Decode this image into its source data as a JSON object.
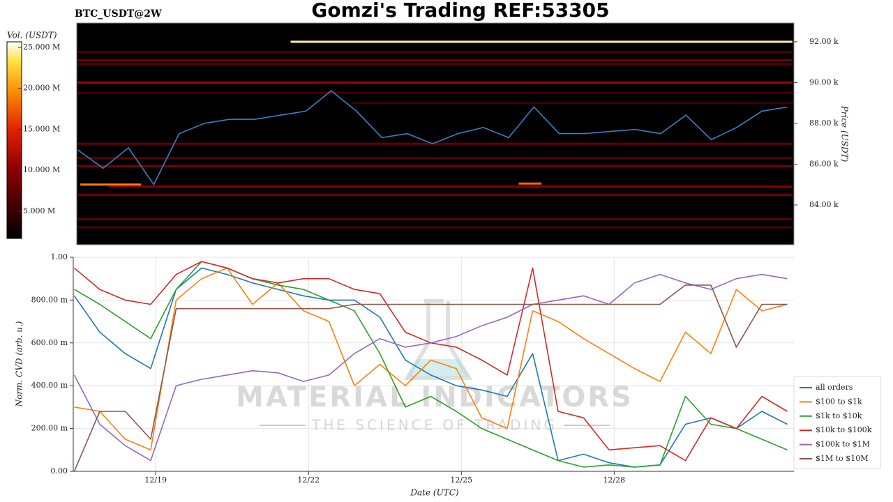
{
  "title": "Gomzi's Trading REF:53305",
  "watermark": {
    "title": "MATERIAL INDICATORS",
    "subtitle": "THE SCIENCE OF TRADING"
  },
  "chart_data": [
    {
      "type": "heatmap",
      "title": "BTC_USDT@2W",
      "y_label": "Price (USDT)",
      "xlim": [
        17.38,
        31.53
      ],
      "ylim": [
        82050,
        92920
      ],
      "yticks": [
        {
          "value": 84000,
          "label": "84.00 k"
        },
        {
          "value": 86000,
          "label": "86.00 k"
        },
        {
          "value": 88000,
          "label": "88.00 k"
        },
        {
          "value": 90000,
          "label": "90.00 k"
        },
        {
          "value": 92000,
          "label": "92.00 k"
        }
      ],
      "colorbar": {
        "label": "Vol. (USDT)",
        "lim": [
          1670000,
          25680000
        ],
        "ticks": [
          {
            "value": 5000000,
            "label": "5.000 M"
          },
          {
            "value": 10000000,
            "label": "10.000 M"
          },
          {
            "value": 15000000,
            "label": "15.000 M"
          },
          {
            "value": 20000000,
            "label": "20.000 M"
          },
          {
            "value": 25000000,
            "label": "25.000 M"
          }
        ]
      },
      "bands": {
        "prices": [
          92000,
          91100,
          90900,
          90000,
          89500,
          87000,
          86300,
          85900,
          85000,
          85050,
          84900,
          84500,
          83300,
          82900,
          91500,
          89000
        ],
        "volumes": [
          24500000,
          9000000,
          7000000,
          11000000,
          6000000,
          8000000,
          7000000,
          9000000,
          19000000,
          18000000,
          10000000,
          8500000,
          7500000,
          6500000,
          6000000,
          5500000
        ],
        "starts": [
          21.6,
          17.4,
          17.4,
          17.4,
          17.4,
          17.4,
          17.4,
          17.4,
          17.45,
          26.1,
          18.0,
          17.4,
          17.4,
          17.4,
          17.4,
          22.8
        ],
        "ends": [
          31.5,
          31.5,
          31.5,
          31.5,
          31.5,
          31.5,
          31.5,
          31.5,
          18.65,
          26.55,
          31.5,
          31.5,
          31.5,
          31.5,
          31.5,
          31.5
        ]
      },
      "price": {
        "color": "#3a80c4",
        "x": [
          17.4,
          17.9,
          18.4,
          18.9,
          19.4,
          19.9,
          20.4,
          20.9,
          21.4,
          21.9,
          22.4,
          22.9,
          23.4,
          23.9,
          24.4,
          24.9,
          25.4,
          25.9,
          26.4,
          26.9,
          27.4,
          27.9,
          28.4,
          28.9,
          29.4,
          29.9,
          30.4,
          30.9,
          31.4
        ],
        "values": [
          86700,
          85800,
          86800,
          85000,
          87500,
          88000,
          88200,
          88200,
          88400,
          88600,
          89600,
          88600,
          87300,
          87500,
          87000,
          87500,
          87800,
          87300,
          88800,
          87500,
          87500,
          87600,
          87700,
          87500,
          88400,
          87200,
          87800,
          88600,
          88800
        ]
      }
    },
    {
      "type": "line",
      "y_label": "Norm. CVD (arb. u.)",
      "x_label": "Date (UTC)",
      "xlim": [
        17.38,
        31.53
      ],
      "xticks": [
        {
          "value": 19,
          "label": "12/19"
        },
        {
          "value": 22,
          "label": "12/22"
        },
        {
          "value": 25,
          "label": "12/25"
        },
        {
          "value": 28,
          "label": "12/28"
        }
      ],
      "ylim": [
        0,
        1
      ],
      "yticks": [
        {
          "value": 0,
          "label": "0.00"
        },
        {
          "value": 0.2,
          "label": "200.00 m"
        },
        {
          "value": 0.4,
          "label": "400.00 m"
        },
        {
          "value": 0.6,
          "label": "600.00 m"
        },
        {
          "value": 0.8,
          "label": "800.00 m"
        },
        {
          "value": 1,
          "label": "1.00"
        }
      ],
      "grid": true,
      "x": [
        17.4,
        17.9,
        18.4,
        18.9,
        19.4,
        19.9,
        20.4,
        20.9,
        21.4,
        21.9,
        22.4,
        22.9,
        23.4,
        23.9,
        24.4,
        24.9,
        25.4,
        25.9,
        26.4,
        26.9,
        27.4,
        27.9,
        28.4,
        28.9,
        29.4,
        29.9,
        30.4,
        30.9,
        31.4
      ],
      "series": [
        {
          "name": "all orders",
          "color": "#1f77b4",
          "values": [
            0.82,
            0.65,
            0.55,
            0.48,
            0.85,
            0.95,
            0.92,
            0.88,
            0.85,
            0.82,
            0.8,
            0.8,
            0.72,
            0.52,
            0.45,
            0.4,
            0.38,
            0.35,
            0.55,
            0.05,
            0.08,
            0.04,
            0.02,
            0.03,
            0.22,
            0.25,
            0.2,
            0.28,
            0.22
          ]
        },
        {
          "name": "$100 to $1k",
          "color": "#ff7f0e",
          "values": [
            0.3,
            0.28,
            0.15,
            0.1,
            0.8,
            0.9,
            0.95,
            0.78,
            0.88,
            0.75,
            0.7,
            0.4,
            0.5,
            0.4,
            0.52,
            0.48,
            0.25,
            0.2,
            0.75,
            0.7,
            0.62,
            0.55,
            0.48,
            0.42,
            0.65,
            0.55,
            0.85,
            0.75,
            0.78
          ]
        },
        {
          "name": "$1k to $10k",
          "color": "#2ca02c",
          "values": [
            0.85,
            0.78,
            0.7,
            0.62,
            0.85,
            0.98,
            0.95,
            0.9,
            0.87,
            0.85,
            0.8,
            0.75,
            0.55,
            0.3,
            0.35,
            0.28,
            0.2,
            0.15,
            0.1,
            0.05,
            0.02,
            0.03,
            0.02,
            0.03,
            0.35,
            0.22,
            0.2,
            0.15,
            0.1
          ]
        },
        {
          "name": "$10k to $100k",
          "color": "#d62728",
          "values": [
            0.95,
            0.85,
            0.8,
            0.78,
            0.92,
            0.98,
            0.95,
            0.9,
            0.88,
            0.9,
            0.9,
            0.85,
            0.83,
            0.65,
            0.6,
            0.58,
            0.52,
            0.45,
            0.95,
            0.28,
            0.25,
            0.1,
            0.11,
            0.12,
            0.05,
            0.25,
            0.2,
            0.35,
            0.28
          ]
        },
        {
          "name": "$100k to $1M",
          "color": "#9467bd",
          "values": [
            0.45,
            0.22,
            0.12,
            0.05,
            0.4,
            0.43,
            0.45,
            0.47,
            0.46,
            0.42,
            0.45,
            0.55,
            0.62,
            0.58,
            0.6,
            0.63,
            0.68,
            0.72,
            0.78,
            0.8,
            0.82,
            0.78,
            0.88,
            0.92,
            0.88,
            0.85,
            0.9,
            0.92,
            0.9
          ]
        },
        {
          "name": "$1M to $10M",
          "color": "#8c564b",
          "values": [
            0,
            0.28,
            0.28,
            0.15,
            0.76,
            0.76,
            0.76,
            0.76,
            0.76,
            0.76,
            0.76,
            0.78,
            0.78,
            0.78,
            0.78,
            0.78,
            0.78,
            0.78,
            0.78,
            0.78,
            0.78,
            0.78,
            0.78,
            0.78,
            0.87,
            0.87,
            0.58,
            0.78,
            0.78
          ]
        }
      ]
    }
  ]
}
